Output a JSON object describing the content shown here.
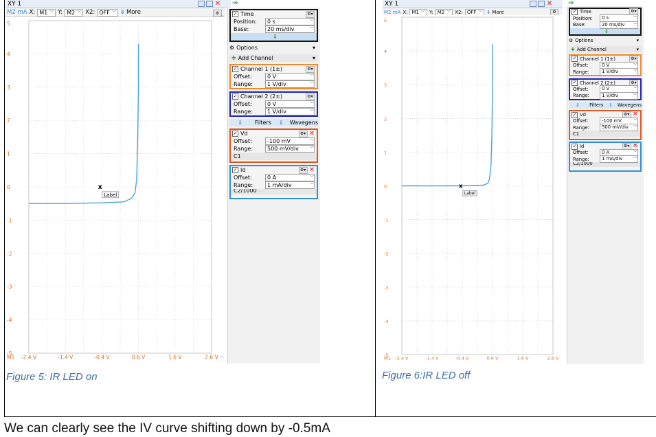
{
  "windows": [
    {
      "title": "XY 1",
      "toolbar": {
        "unit_label": "M2 mA",
        "x_label": "X:",
        "x_value": "M1",
        "y_label": "Y:",
        "y_value": "M2",
        "x2_label": "X2:",
        "x2_value": "OFF",
        "more_label": "More"
      },
      "plot": {
        "y_ticks": [
          "5",
          "4",
          "3",
          "2",
          "1",
          "0",
          "-1",
          "-2",
          "-3",
          "-4",
          "-5"
        ],
        "x_ticks": [
          "-2.4 V",
          "-1.4 V",
          "-0.4 V",
          "0.6 V",
          "1.6 V",
          "2.6 V"
        ],
        "x_origin_label": "M1",
        "marker": "x",
        "marker_label": "Label"
      },
      "panel": {
        "time": {
          "title": "Time",
          "position_label": "Position:",
          "position_value": "0 s",
          "base_label": "Base:",
          "base_value": "20 ms/div"
        },
        "options_label": "Options",
        "add_channel_label": "Add Channel",
        "ch1": {
          "title": "Channel 1 (1±)",
          "offset_label": "Offset:",
          "offset_value": "0 V",
          "range_label": "Range:",
          "range_value": "1 V/div"
        },
        "ch2": {
          "title": "Channel 2 (2±)",
          "offset_label": "Offset:",
          "offset_value": "0 V",
          "range_label": "Range:",
          "range_value": "1 V/div"
        },
        "filters_label": "Filters",
        "wavegens_label": "Wavegens",
        "vd": {
          "title": "Vd",
          "offset_label": "Offset:",
          "offset_value": "-100 mV",
          "range_label": "Range:",
          "range_value": "500 mV/div",
          "source": "C1"
        },
        "id": {
          "title": "Id",
          "offset_label": "Offset:",
          "offset_value": "0 A",
          "range_label": "Range:",
          "range_value": "1 mA/div",
          "source": "C2/1000"
        }
      },
      "caption": "Figure 5: IR LED on",
      "chart_data": {
        "type": "line",
        "xlabel": "M1",
        "ylabel": "M2 mA",
        "xlim": [
          -2.4,
          2.6
        ],
        "ylim": [
          -5,
          5
        ],
        "x": [
          -2.4,
          -1.4,
          -0.4,
          0.2,
          0.4,
          0.5,
          0.55,
          0.58,
          0.6,
          0.6
        ],
        "y": [
          -0.5,
          -0.5,
          -0.48,
          -0.45,
          -0.35,
          -0.2,
          0.2,
          1.5,
          3.0,
          4.3
        ],
        "colors": {
          "trace": "#4aa3df"
        }
      }
    },
    {
      "title": "XY 1",
      "toolbar": {
        "unit_label": "M2 mA",
        "x_label": "X:",
        "x_value": "M1",
        "y_label": "Y:",
        "y_value": "M2",
        "x2_label": "X2:",
        "x2_value": "OFF",
        "more_label": "More"
      },
      "plot": {
        "y_ticks": [
          "5",
          "4",
          "3",
          "2",
          "1",
          "0",
          "-1",
          "-2",
          "-3",
          "-4",
          "-5"
        ],
        "x_ticks": [
          "-2.4 V",
          "-1.4 V",
          "-0.4 V",
          "0.6 V",
          "1.6 V",
          "2.6 V"
        ],
        "x_origin_label": "M1",
        "marker": "x",
        "marker_label": "Label"
      },
      "panel": {
        "time": {
          "title": "Time",
          "position_label": "Position:",
          "position_value": "0 s",
          "base_label": "Base:",
          "base_value": "20 ms/div"
        },
        "options_label": "Options",
        "add_channel_label": "Add Channel",
        "ch1": {
          "title": "Channel 1 (1±)",
          "offset_label": "Offset:",
          "offset_value": "0 V",
          "range_label": "Range:",
          "range_value": "1 V/div"
        },
        "ch2": {
          "title": "Channel 2 (2±)",
          "offset_label": "Offset:",
          "offset_value": "0 V",
          "range_label": "Range:",
          "range_value": "1 V/div"
        },
        "filters_label": "Filters",
        "wavegens_label": "Wavegens",
        "vd": {
          "title": "Vd",
          "offset_label": "Offset:",
          "offset_value": "-100 mV",
          "range_label": "Range:",
          "range_value": "500 mV/div",
          "source": "C1"
        },
        "id": {
          "title": "Id",
          "offset_label": "Offset:",
          "offset_value": "0 A",
          "range_label": "Range:",
          "range_value": "1 mA/div",
          "source": "C2/1000"
        }
      },
      "caption": "Figure 6:IR LED off",
      "chart_data": {
        "type": "line",
        "xlabel": "M1",
        "ylabel": "M2 mA",
        "xlim": [
          -2.4,
          2.6
        ],
        "ylim": [
          -5,
          5
        ],
        "x": [
          -2.4,
          -1.4,
          -0.4,
          0.3,
          0.45,
          0.5,
          0.55,
          0.58,
          0.6,
          0.6
        ],
        "y": [
          0.0,
          0.0,
          0.0,
          0.02,
          0.08,
          0.2,
          0.6,
          1.5,
          3.0,
          4.2
        ],
        "colors": {
          "trace": "#4aa3df"
        }
      }
    }
  ],
  "body_text": "We can clearly see the IV curve shifting down by -0.5mA"
}
